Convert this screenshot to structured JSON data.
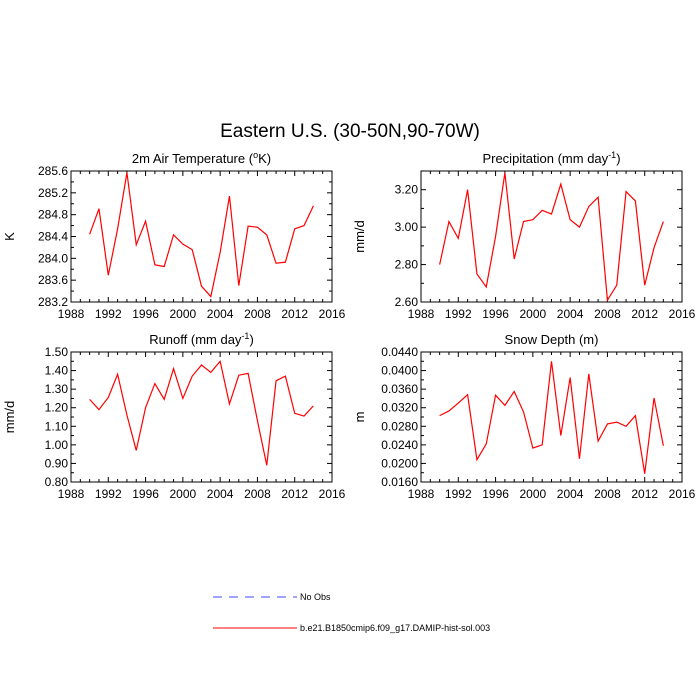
{
  "figure": {
    "title": "Eastern U.S. (30-50N,90-70W)"
  },
  "legend": [
    {
      "label": "No Obs",
      "color": "#4444ff",
      "dash": "dashed"
    },
    {
      "label": "b.e21.B1850cmip6.f09_g17.DAMIP-hist-sol.003",
      "color": "#ff0000",
      "dash": "solid"
    }
  ],
  "chart_data": [
    {
      "type": "line",
      "title_main": "2m Air Temperature (",
      "title_sup": "o",
      "title_tail": "K)",
      "ylabel": "K",
      "xlim": [
        1988,
        2016
      ],
      "ylim": [
        283.2,
        285.6
      ],
      "x_ticks": [
        "1988",
        "1992",
        "1996",
        "2000",
        "2004",
        "2008",
        "2012",
        "2016"
      ],
      "y_ticks": [
        "283.2",
        "283.6",
        "284.0",
        "284.4",
        "284.8",
        "285.2",
        "285.6"
      ],
      "x": [
        1990,
        1991,
        1992,
        1993,
        1994,
        1995,
        1996,
        1997,
        1998,
        1999,
        2000,
        2001,
        2002,
        2003,
        2004,
        2005,
        2006,
        2007,
        2008,
        2009,
        2010,
        2011,
        2012,
        2013,
        2014
      ],
      "series": [
        {
          "values": [
            284.44,
            284.91,
            283.69,
            284.54,
            285.57,
            284.25,
            284.68,
            283.88,
            283.85,
            284.43,
            284.26,
            284.16,
            283.49,
            283.3,
            284.11,
            285.14,
            283.5,
            284.59,
            284.57,
            284.43,
            283.91,
            283.93,
            284.54,
            284.6,
            284.96
          ]
        }
      ]
    },
    {
      "type": "line",
      "title_main": "Precipitation (mm day",
      "title_sup": "-1",
      "title_tail": ")",
      "ylabel": "mm/d",
      "xlim": [
        1988,
        2016
      ],
      "ylim": [
        2.6,
        3.3
      ],
      "x_ticks": [
        "1988",
        "1992",
        "1996",
        "2000",
        "2004",
        "2008",
        "2012",
        "2016"
      ],
      "y_ticks": [
        "2.60",
        "2.80",
        "3.00",
        "3.20"
      ],
      "x": [
        1990,
        1991,
        1992,
        1993,
        1994,
        1995,
        1996,
        1997,
        1998,
        1999,
        2000,
        2001,
        2002,
        2003,
        2004,
        2005,
        2006,
        2007,
        2008,
        2009,
        2010,
        2011,
        2012,
        2013,
        2014
      ],
      "series": [
        {
          "values": [
            2.8,
            3.03,
            2.94,
            3.2,
            2.75,
            2.68,
            2.95,
            3.29,
            2.83,
            3.03,
            3.04,
            3.09,
            3.07,
            3.23,
            3.04,
            3.0,
            3.11,
            3.16,
            2.61,
            2.69,
            3.19,
            3.14,
            2.69,
            2.89,
            3.03
          ]
        }
      ]
    },
    {
      "type": "line",
      "title_main": "Runoff (mm day",
      "title_sup": "-1",
      "title_tail": ")",
      "ylabel": "mm/d",
      "xlim": [
        1988,
        2016
      ],
      "ylim": [
        0.8,
        1.5
      ],
      "x_ticks": [
        "1988",
        "1992",
        "1996",
        "2000",
        "2004",
        "2008",
        "2012",
        "2016"
      ],
      "y_ticks": [
        "0.80",
        "0.90",
        "1.00",
        "1.10",
        "1.20",
        "1.30",
        "1.40",
        "1.50"
      ],
      "x": [
        1990,
        1991,
        1992,
        1993,
        1994,
        1995,
        1996,
        1997,
        1998,
        1999,
        2000,
        2001,
        2002,
        2003,
        2004,
        2005,
        2006,
        2007,
        2008,
        2009,
        2010,
        2011,
        2012,
        2013,
        2014
      ],
      "series": [
        {
          "values": [
            1.245,
            1.19,
            1.255,
            1.38,
            1.16,
            0.97,
            1.2,
            1.33,
            1.245,
            1.41,
            1.25,
            1.37,
            1.43,
            1.39,
            1.45,
            1.22,
            1.375,
            1.385,
            1.13,
            0.89,
            1.345,
            1.37,
            1.17,
            1.155,
            1.21
          ]
        }
      ]
    },
    {
      "type": "line",
      "title_main": "Snow Depth (m)",
      "title_sup": "",
      "title_tail": "",
      "ylabel": "m",
      "xlim": [
        1988,
        2016
      ],
      "ylim": [
        0.016,
        0.044
      ],
      "x_ticks": [
        "1988",
        "1992",
        "1996",
        "2000",
        "2004",
        "2008",
        "2012",
        "2016"
      ],
      "y_ticks": [
        "0.0160",
        "0.0200",
        "0.0240",
        "0.0280",
        "0.0320",
        "0.0360",
        "0.0400",
        "0.0440"
      ],
      "x": [
        1990,
        1991,
        1992,
        1993,
        1994,
        1995,
        1996,
        1997,
        1998,
        1999,
        2000,
        2001,
        2002,
        2003,
        2004,
        2005,
        2006,
        2007,
        2008,
        2009,
        2010,
        2011,
        2012,
        2013,
        2014
      ],
      "series": [
        {
          "values": [
            0.0303,
            0.0313,
            0.033,
            0.0348,
            0.0208,
            0.0242,
            0.0347,
            0.0325,
            0.0355,
            0.0311,
            0.0233,
            0.024,
            0.042,
            0.026,
            0.0385,
            0.021,
            0.0393,
            0.0248,
            0.0285,
            0.0289,
            0.028,
            0.0303,
            0.0178,
            0.0341,
            0.0238
          ]
        }
      ]
    }
  ]
}
